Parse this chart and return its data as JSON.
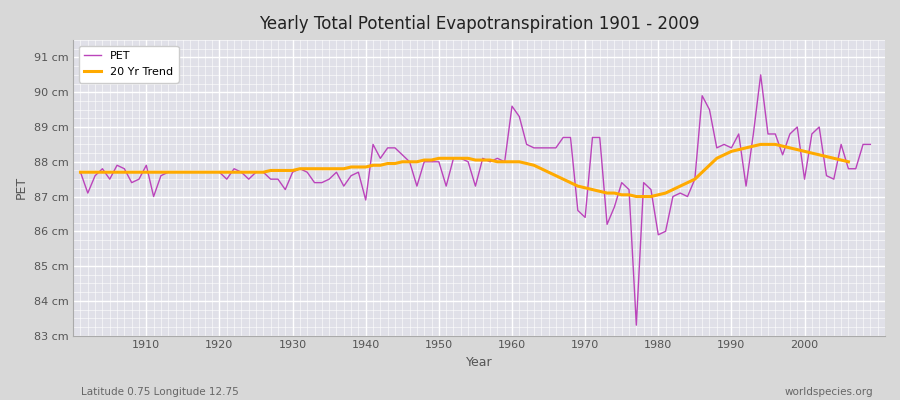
{
  "title": "Yearly Total Potential Evapotranspiration 1901 - 2009",
  "xlabel": "Year",
  "ylabel": "PET",
  "subtitle_left": "Latitude 0.75 Longitude 12.75",
  "subtitle_right": "worldspecies.org",
  "pet_color": "#bb44bb",
  "trend_color": "#ffaa00",
  "background_color": "#d8d8d8",
  "plot_bg_color": "#e0e0e8",
  "ylim": [
    83.0,
    91.5
  ],
  "yticks": [
    83,
    84,
    85,
    86,
    87,
    88,
    89,
    90,
    91
  ],
  "years": [
    1901,
    1902,
    1903,
    1904,
    1905,
    1906,
    1907,
    1908,
    1909,
    1910,
    1911,
    1912,
    1913,
    1914,
    1915,
    1916,
    1917,
    1918,
    1919,
    1920,
    1921,
    1922,
    1923,
    1924,
    1925,
    1926,
    1927,
    1928,
    1929,
    1930,
    1931,
    1932,
    1933,
    1934,
    1935,
    1936,
    1937,
    1938,
    1939,
    1940,
    1941,
    1942,
    1943,
    1944,
    1945,
    1946,
    1947,
    1948,
    1949,
    1950,
    1951,
    1952,
    1953,
    1954,
    1955,
    1956,
    1957,
    1958,
    1959,
    1960,
    1961,
    1962,
    1963,
    1964,
    1965,
    1966,
    1967,
    1968,
    1969,
    1970,
    1971,
    1972,
    1973,
    1974,
    1975,
    1976,
    1977,
    1978,
    1979,
    1980,
    1981,
    1982,
    1983,
    1984,
    1985,
    1986,
    1987,
    1988,
    1989,
    1990,
    1991,
    1992,
    1993,
    1994,
    1995,
    1996,
    1997,
    1998,
    1999,
    2000,
    2001,
    2002,
    2003,
    2004,
    2005,
    2006,
    2007,
    2008,
    2009
  ],
  "pet_values": [
    87.7,
    87.1,
    87.6,
    87.8,
    87.5,
    87.9,
    87.8,
    87.4,
    87.5,
    87.9,
    87.0,
    87.6,
    87.7,
    87.7,
    87.7,
    87.7,
    87.7,
    87.7,
    87.7,
    87.7,
    87.5,
    87.8,
    87.7,
    87.5,
    87.7,
    87.7,
    87.5,
    87.5,
    87.2,
    87.7,
    87.8,
    87.7,
    87.4,
    87.4,
    87.5,
    87.7,
    87.3,
    87.6,
    87.7,
    86.9,
    88.5,
    88.1,
    88.4,
    88.4,
    88.2,
    88.0,
    87.3,
    88.0,
    88.0,
    88.0,
    87.3,
    88.1,
    88.1,
    88.0,
    87.3,
    88.1,
    88.0,
    88.1,
    88.0,
    89.6,
    89.3,
    88.5,
    88.4,
    88.4,
    88.4,
    88.4,
    88.7,
    88.7,
    86.6,
    86.4,
    88.7,
    88.7,
    86.2,
    86.7,
    87.4,
    87.2,
    83.3,
    87.4,
    87.2,
    85.9,
    86.0,
    87.0,
    87.1,
    87.0,
    87.5,
    89.9,
    89.5,
    88.4,
    88.5,
    88.4,
    88.8,
    87.3,
    88.8,
    90.5,
    88.8,
    88.8,
    88.2,
    88.8,
    89.0,
    87.5,
    88.8,
    89.0,
    87.6,
    87.5,
    88.5,
    87.8,
    87.8,
    88.5,
    88.5
  ],
  "trend_values": [
    87.7,
    87.7,
    87.7,
    87.7,
    87.7,
    87.7,
    87.7,
    87.7,
    87.7,
    87.7,
    87.7,
    87.7,
    87.7,
    87.7,
    87.7,
    87.7,
    87.7,
    87.7,
    87.7,
    87.7,
    87.7,
    87.7,
    87.7,
    87.7,
    87.7,
    87.7,
    87.75,
    87.75,
    87.75,
    87.75,
    87.8,
    87.8,
    87.8,
    87.8,
    87.8,
    87.8,
    87.8,
    87.85,
    87.85,
    87.85,
    87.9,
    87.9,
    87.95,
    87.95,
    88.0,
    88.0,
    88.0,
    88.05,
    88.05,
    88.1,
    88.1,
    88.1,
    88.1,
    88.1,
    88.05,
    88.05,
    88.05,
    88.0,
    88.0,
    88.0,
    88.0,
    87.95,
    87.9,
    87.8,
    87.7,
    87.6,
    87.5,
    87.4,
    87.3,
    87.25,
    87.2,
    87.15,
    87.1,
    87.1,
    87.05,
    87.05,
    87.0,
    87.0,
    87.0,
    87.05,
    87.1,
    87.2,
    87.3,
    87.4,
    87.5,
    87.7,
    87.9,
    88.1,
    88.2,
    88.3,
    88.35,
    88.4,
    88.45,
    88.5,
    88.5,
    88.5,
    88.45,
    88.4,
    88.35,
    88.3,
    88.25,
    88.2,
    88.15,
    88.1,
    88.05,
    88.0,
    null,
    null,
    null
  ]
}
